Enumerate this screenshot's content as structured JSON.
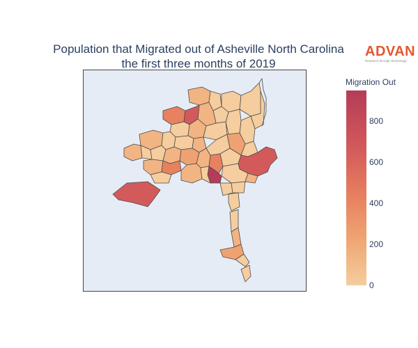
{
  "title": {
    "line1": "Population that Migrated out of Asheville North Carolina",
    "line2": "the first three months of 2019"
  },
  "logo": {
    "name": "ADVAN",
    "tagline": "Research through Technology"
  },
  "colorbar": {
    "title": "Migration Out",
    "min": 0,
    "max": 950,
    "ticks": [
      "0",
      "200",
      "400",
      "600",
      "800"
    ],
    "colors": [
      "#f5cd9e",
      "#efa271",
      "#e88160",
      "#d35a5b",
      "#b43c58"
    ]
  },
  "map": {
    "background": "#e5ecf6",
    "border_color": "#444444",
    "region_fill_low": "#f5cd9e",
    "region_fill_high": "#b43c58"
  }
}
